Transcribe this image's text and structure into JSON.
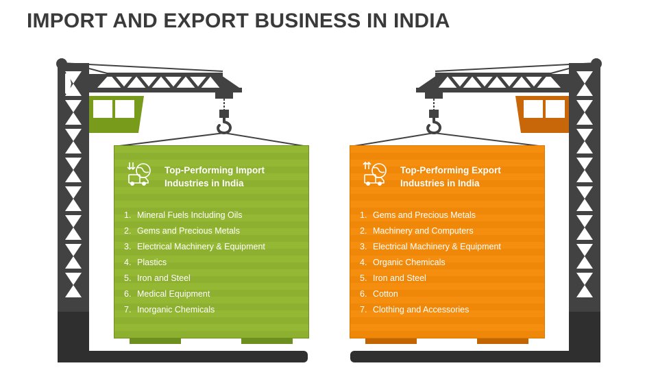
{
  "title": "IMPORT AND EXPORT BUSINESS IN INDIA",
  "colors": {
    "crane": "#424242",
    "import_panel": "#94b834",
    "import_cabin": "#799b1b",
    "import_footer": "#6c8f1f",
    "export_panel": "#f58e0f",
    "export_cabin": "#c7670a",
    "export_footer": "#c26400",
    "text": "#ffffff"
  },
  "import_panel": {
    "icon": "import-globe-truck-icon",
    "heading_line1": "Top-Performing Import",
    "heading_line2": "Industries in India",
    "items": [
      {
        "num": "1.",
        "label": "Mineral Fuels Including Oils"
      },
      {
        "num": "2.",
        "label": "Gems and Precious Metals"
      },
      {
        "num": "3.",
        "label": "Electrical Machinery & Equipment"
      },
      {
        "num": "4.",
        "label": "Plastics"
      },
      {
        "num": "5.",
        "label": "Iron and Steel"
      },
      {
        "num": "6.",
        "label": "Medical Equipment"
      },
      {
        "num": "7.",
        "label": "Inorganic Chemicals"
      }
    ]
  },
  "export_panel": {
    "icon": "export-globe-truck-icon",
    "heading_line1": "Top-Performing Export",
    "heading_line2": "Industries in India",
    "items": [
      {
        "num": "1.",
        "label": "Gems and Precious Metals"
      },
      {
        "num": "2.",
        "label": "Machinery and Computers"
      },
      {
        "num": "3.",
        "label": "Electrical Machinery & Equipment"
      },
      {
        "num": "4.",
        "label": "Organic Chemicals"
      },
      {
        "num": "5.",
        "label": "Iron and Steel"
      },
      {
        "num": "6.",
        "label": "Cotton"
      },
      {
        "num": "7.",
        "label": "Clothing and Accessories"
      }
    ]
  }
}
